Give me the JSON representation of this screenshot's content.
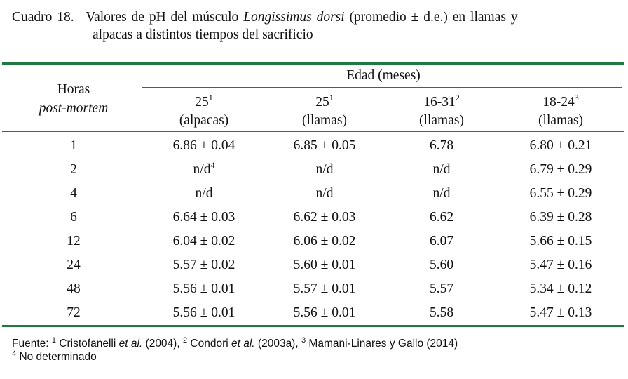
{
  "caption": {
    "label": "Cuadro 18.",
    "line1_pre": "Valores de pH del músculo",
    "line1_italic": "Longissimus dorsi",
    "line1_post": "(promedio ± d.e.) en llamas y",
    "line2": "alpacas a distintos tiempos del sacrificio"
  },
  "header": {
    "row_label_1": "Horas",
    "row_label_2": "post-mortem",
    "group_label": "Edad (meses)",
    "columns": [
      {
        "age": "25",
        "ref": "1",
        "species": "(alpacas)"
      },
      {
        "age": "25",
        "ref": "1",
        "species": "(llamas)"
      },
      {
        "age": "16-31",
        "ref": "2",
        "species": "(llamas)"
      },
      {
        "age": "18-24",
        "ref": "3",
        "species": "(llamas)"
      }
    ]
  },
  "rows": [
    {
      "hours": "1",
      "values": [
        "6.86 ± 0.04",
        "6.85 ± 0.05",
        "6.78",
        "6.80 ± 0.21"
      ]
    },
    {
      "hours": "2",
      "values": [
        "n/d",
        "n/d",
        "n/d",
        "6.79 ± 0.29"
      ],
      "first_sup": "4"
    },
    {
      "hours": "4",
      "values": [
        "n/d",
        "n/d",
        "n/d",
        "6.55 ± 0.29"
      ]
    },
    {
      "hours": "6",
      "values": [
        "6.64 ± 0.03",
        "6.62 ± 0.03",
        "6.62",
        "6.39 ± 0.28"
      ]
    },
    {
      "hours": "12",
      "values": [
        "6.04 ± 0.02",
        "6.06 ± 0.02",
        "6.07",
        "5.66 ± 0.15"
      ]
    },
    {
      "hours": "24",
      "values": [
        "5.57 ± 0.02",
        "5.60 ± 0.01",
        "5.60",
        "5.47 ± 0.16"
      ]
    },
    {
      "hours": "48",
      "values": [
        "5.56 ± 0.01",
        "5.57 ± 0.01",
        "5.57",
        "5.34 ± 0.12"
      ]
    },
    {
      "hours": "72",
      "values": [
        "5.56 ± 0.01",
        "5.56 ± 0.01",
        "5.58",
        "5.47 ± 0.13"
      ]
    }
  ],
  "footnote": {
    "prefix": "Fuente:",
    "s1": "1",
    "a1": "Cristofanelli",
    "etal": "et al.",
    "y1": "(2004),",
    "s2": "2",
    "a2": "Condori",
    "y2": "(2003a),",
    "s3": "3",
    "a3": "Mamani-Linares y Gallo (2014)",
    "s4": "4",
    "nd": "No determinado"
  },
  "colors": {
    "rule": "#1f7a3f",
    "text": "#111111"
  }
}
